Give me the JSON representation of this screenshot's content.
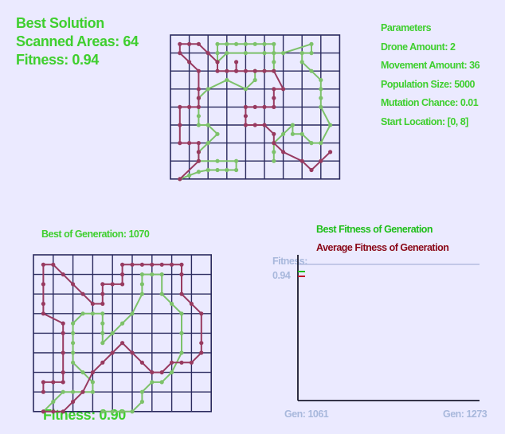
{
  "best": {
    "title": "Best Solution",
    "scanned_label": "Scanned Areas: 64",
    "fitness_label": "Fitness: 0.94"
  },
  "parameters": {
    "heading": "Parameters",
    "drone_amount": "Drone Amount: 2",
    "movement_amount": "Movement Amount: 36",
    "population_size": "Population Size: 5000",
    "mutation_chance": "Mutation Chance: 0.01",
    "start_location": "Start Location: [0, 8]"
  },
  "generation": {
    "title": "Best of Generation: 1070",
    "fitness_label": "Fitness: 0.90"
  },
  "chart": {
    "legend_best": "Best Fitness of Generation",
    "legend_avg": "Average Fitness of Generation",
    "y_label_line1": "Fitness:",
    "y_label_line2": "0.94",
    "x_start_label": "Gen: 1061",
    "x_end_label": "Gen: 1273"
  },
  "colors": {
    "background": "#ebeaff",
    "text_green": "#3fcf2f",
    "grid_line": "#2a2a5e",
    "drone1_path": "#983a60",
    "drone2_path": "#7dc26a",
    "axis_line": "#1a1a2e",
    "reference_line": "#b6bde0"
  },
  "grid": {
    "columns": 9,
    "rows": 8
  },
  "chart_data": {
    "type": "line",
    "title": "",
    "xlabel": "",
    "ylabel": "Fitness",
    "x_range_labels": [
      "Gen: 1061",
      "Gen: 1273"
    ],
    "reference_value": 0.94,
    "series": [
      {
        "name": "Best Fitness of Generation",
        "color": "#1fbf1a",
        "values": [
          0.9
        ]
      },
      {
        "name": "Average Fitness of Generation",
        "color": "#c0102a",
        "values": [
          0.86
        ]
      }
    ]
  }
}
